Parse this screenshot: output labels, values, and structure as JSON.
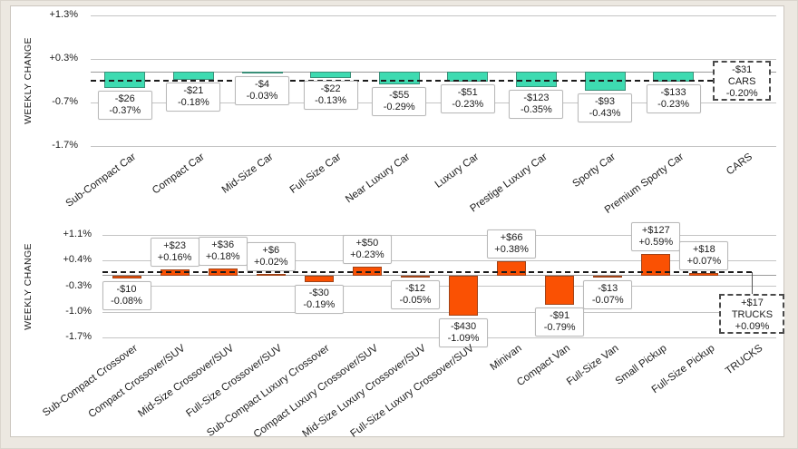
{
  "page": {
    "background_color": "#ECE8E1",
    "panel_color": "#FFFFFF"
  },
  "chart_data": [
    {
      "type": "bar",
      "group_label": "CARS",
      "ylabel": "WEEKLY CHANGE",
      "bar_color": "#3EDBB1",
      "grid": true,
      "legend": "none",
      "average_line_style": "dashed",
      "ylim": [
        -1.7,
        1.3
      ],
      "yticks": [
        1.3,
        0.3,
        -0.7,
        -1.7
      ],
      "ytick_labels": [
        "+1.3%",
        "+0.3%",
        "-0.7%",
        "-1.7%"
      ],
      "points": [
        {
          "category": "Sub-Compact Car",
          "dollar": "-$26",
          "pct": -0.37,
          "pct_label": "-0.37%"
        },
        {
          "category": "Compact Car",
          "dollar": "-$21",
          "pct": -0.18,
          "pct_label": "-0.18%"
        },
        {
          "category": "Mid-Size Car",
          "dollar": "-$4",
          "pct": -0.03,
          "pct_label": "-0.03%"
        },
        {
          "category": "Full-Size Car",
          "dollar": "-$22",
          "pct": -0.13,
          "pct_label": "-0.13%"
        },
        {
          "category": "Near Luxury Car",
          "dollar": "-$55",
          "pct": -0.29,
          "pct_label": "-0.29%"
        },
        {
          "category": "Luxury Car",
          "dollar": "-$51",
          "pct": -0.23,
          "pct_label": "-0.23%"
        },
        {
          "category": "Prestige Luxury Car",
          "dollar": "-$123",
          "pct": -0.35,
          "pct_label": "-0.35%"
        },
        {
          "category": "Sporty Car",
          "dollar": "-$93",
          "pct": -0.43,
          "pct_label": "-0.43%"
        },
        {
          "category": "Premium Sporty Car",
          "dollar": "-$133",
          "pct": -0.23,
          "pct_label": "-0.23%"
        }
      ],
      "summary": {
        "dollar": "-$31",
        "label": "CARS",
        "pct": -0.2,
        "pct_label": "-0.20%"
      }
    },
    {
      "type": "bar",
      "group_label": "TRUCKS",
      "ylabel": "WEEKLY CHANGE",
      "bar_color": "#FA5103",
      "grid": true,
      "legend": "none",
      "average_line_style": "dashed",
      "ylim": [
        -1.7,
        1.1
      ],
      "yticks": [
        1.1,
        0.4,
        -0.3,
        -1.0,
        -1.7
      ],
      "ytick_labels": [
        "+1.1%",
        "+0.4%",
        "-0.3%",
        "-1.0%",
        "-1.7%"
      ],
      "points": [
        {
          "category": "Sub-Compact Crossover",
          "dollar": "-$10",
          "pct": -0.08,
          "pct_label": "-0.08%"
        },
        {
          "category": "Compact Crossover/SUV",
          "dollar": "+$23",
          "pct": 0.16,
          "pct_label": "+0.16%"
        },
        {
          "category": "Mid-Size Crossover/SUV",
          "dollar": "+$36",
          "pct": 0.18,
          "pct_label": "+0.18%"
        },
        {
          "category": "Full-Size Crossover/SUV",
          "dollar": "+$6",
          "pct": 0.02,
          "pct_label": "+0.02%"
        },
        {
          "category": "Sub-Compact Luxury Crossover",
          "dollar": "-$30",
          "pct": -0.19,
          "pct_label": "-0.19%"
        },
        {
          "category": "Compact Luxury Crossover/SUV",
          "dollar": "+$50",
          "pct": 0.23,
          "pct_label": "+0.23%"
        },
        {
          "category": "Mid-Size Luxury Crossover/SUV",
          "dollar": "-$12",
          "pct": -0.05,
          "pct_label": "-0.05%"
        },
        {
          "category": "Full-Size Luxury Crossover/SUV",
          "dollar": "-$430",
          "pct": -1.09,
          "pct_label": "-1.09%"
        },
        {
          "category": "Minivan",
          "dollar": "+$66",
          "pct": 0.38,
          "pct_label": "+0.38%"
        },
        {
          "category": "Compact Van",
          "dollar": "-$91",
          "pct": -0.79,
          "pct_label": "-0.79%"
        },
        {
          "category": "Full-Size Van",
          "dollar": "-$13",
          "pct": -0.07,
          "pct_label": "-0.07%"
        },
        {
          "category": "Small Pickup",
          "dollar": "+$127",
          "pct": 0.59,
          "pct_label": "+0.59%"
        },
        {
          "category": "Full-Size Pickup",
          "dollar": "+$18",
          "pct": 0.07,
          "pct_label": "+0.07%"
        }
      ],
      "summary": {
        "dollar": "+$17",
        "label": "TRUCKS",
        "pct": 0.09,
        "pct_label": "+0.09%"
      }
    }
  ]
}
